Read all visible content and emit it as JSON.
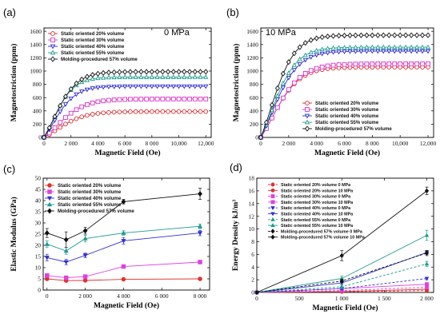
{
  "chart_data": [
    {
      "panel_label": "(a)",
      "annotation": "0 MPa",
      "type": "line",
      "xlabel": "Magnetic Field   (Oe)",
      "ylabel": "Magnetostriction  (ppm)",
      "xlim": [
        0,
        12400
      ],
      "ylim": [
        0,
        1650
      ],
      "xticks": [
        0,
        2000,
        4000,
        6000,
        8000,
        10000,
        12000
      ],
      "xtick_labels": [
        "0",
        "2 000",
        "4 000",
        "6 000",
        "8 000",
        "10,000",
        "12,000"
      ],
      "yticks": [
        0,
        200,
        400,
        600,
        800,
        1000,
        1200,
        1400,
        1600
      ],
      "ytick_labels": [
        "0",
        "200",
        "400",
        "600",
        "800",
        "1000",
        "1200",
        "1400",
        "1600"
      ],
      "legend_position": "top-left",
      "series": [
        {
          "name": "Static oriented 20% volume",
          "color": "#d62828",
          "marker": "circle",
          "sat": 390,
          "k": 2600
        },
        {
          "name": "Static oriented 30% volume",
          "color": "#d633c8",
          "marker": "square",
          "sat": 580,
          "k": 2600
        },
        {
          "name": "Static oriented 40% volume",
          "color": "#2a2ad0",
          "marker": "tri-down",
          "sat": 770,
          "k": 2000
        },
        {
          "name": "Static oriented 55% volume",
          "color": "#1f9c8e",
          "marker": "tri-up",
          "sat": 910,
          "k": 1900
        },
        {
          "name": "Molding-procedured 57% volume",
          "color": "#111111",
          "marker": "diamond",
          "sat": 990,
          "k": 2100
        }
      ]
    },
    {
      "panel_label": "(b)",
      "annotation": "10 MPa",
      "type": "line",
      "xlabel": "Magnetic Field   (Oe)",
      "ylabel": "Magnetostriction  (ppm)",
      "xlim": [
        0,
        12400
      ],
      "ylim": [
        0,
        1650
      ],
      "xticks": [
        0,
        2000,
        4000,
        6000,
        8000,
        10000,
        12000
      ],
      "xtick_labels": [
        "0",
        "2 000",
        "4 000",
        "6 000",
        "8 000",
        "10,000",
        "12,000"
      ],
      "yticks": [
        0,
        200,
        400,
        600,
        800,
        1000,
        1200,
        1400,
        1600
      ],
      "ytick_labels": [
        "0",
        "200",
        "400",
        "600",
        "800",
        "1000",
        "1200",
        "1400",
        "1600"
      ],
      "legend_position": "bottom-right",
      "series": [
        {
          "name": "Static oriented 20% volume",
          "color": "#d62828",
          "marker": "circle",
          "sat": 1060,
          "k": 2400
        },
        {
          "name": "Static oriented 30% volume",
          "color": "#d633c8",
          "marker": "square",
          "sat": 1110,
          "k": 2500
        },
        {
          "name": "Static oriented 40% volume",
          "color": "#2a2ad0",
          "marker": "tri-down",
          "sat": 1300,
          "k": 2300
        },
        {
          "name": "Static oriented 55% volume",
          "color": "#1f9c8e",
          "marker": "tri-up",
          "sat": 1360,
          "k": 2200
        },
        {
          "name": "Molding-procedured 57% volume",
          "color": "#111111",
          "marker": "diamond",
          "sat": 1540,
          "k": 2100
        }
      ]
    },
    {
      "panel_label": "(c)",
      "type": "line",
      "xlabel": "Magnetic Field   (Oe)",
      "ylabel": "Elastic Modulus   (GPa)",
      "x": [
        0,
        1000,
        2000,
        4000,
        8000
      ],
      "xlim": [
        -200,
        8500
      ],
      "ylim": [
        0,
        50
      ],
      "xticks": [
        0,
        2000,
        4000,
        6000,
        8000
      ],
      "xtick_labels": [
        "0",
        "2 000",
        "4 000",
        "6 000",
        "8 000"
      ],
      "yticks": [
        0,
        5,
        10,
        15,
        20,
        25,
        30,
        35,
        40,
        45,
        50
      ],
      "ytick_labels": [
        "0",
        "5",
        "10",
        "15",
        "20",
        "25",
        "30",
        "35",
        "40",
        "45",
        "50"
      ],
      "legend_position": "top-left",
      "series": [
        {
          "name": "Static oriented 20% volume",
          "color": "#e23030",
          "marker": "circle",
          "values": [
            5,
            4.2,
            4.3,
            4.8,
            5.0
          ],
          "err": [
            0.5,
            0.4,
            0.4,
            0.3,
            0.3
          ]
        },
        {
          "name": "Static oriented 30% volume",
          "color": "#e040e0",
          "marker": "square",
          "values": [
            6.5,
            5.5,
            6,
            10.5,
            12.5
          ],
          "err": [
            0.6,
            0.5,
            0.5,
            0.6,
            0.5
          ]
        },
        {
          "name": "Static oriented 40% volume",
          "color": "#3030d0",
          "marker": "tri-down",
          "values": [
            14.5,
            12.5,
            15.5,
            22,
            25.5
          ],
          "err": [
            1.5,
            1.2,
            1.0,
            1.5,
            1.2
          ]
        },
        {
          "name": "Static oriented 55% volume",
          "color": "#1f9c8e",
          "marker": "tri-up",
          "values": [
            20.5,
            17.5,
            23,
            25.5,
            28.5
          ],
          "err": [
            1.5,
            1.5,
            1.5,
            1.0,
            1.0
          ]
        },
        {
          "name": "Molding-procedured 57% volume",
          "color": "#111111",
          "marker": "diamond",
          "values": [
            25.5,
            22.5,
            26.5,
            39.5,
            43
          ],
          "err": [
            2.0,
            3.5,
            1.5,
            1.0,
            2.5
          ]
        }
      ]
    },
    {
      "panel_label": "(d)",
      "type": "line",
      "xlabel": "Magnetic Field   (Oe)",
      "ylabel": "Energy Density kJ/m³",
      "x": [
        0,
        1000,
        2000
      ],
      "xlim": [
        0,
        2080
      ],
      "ylim": [
        0,
        18
      ],
      "xticks": [
        0,
        500,
        1000,
        1500,
        2000
      ],
      "xtick_labels": [
        "0",
        "500",
        "1 000",
        "1 500",
        "2 000"
      ],
      "yticks": [
        0,
        2,
        4,
        6,
        8,
        10,
        12,
        14,
        16,
        18
      ],
      "ytick_labels": [
        "0",
        "2",
        "4",
        "6",
        "8",
        "10",
        "12",
        "14",
        "16",
        "18"
      ],
      "legend_position": "top-left",
      "series": [
        {
          "name": "Static oriented 20% volume 0 MPa",
          "color": "#e23030",
          "marker": "circle",
          "dash": "3,2",
          "values": [
            0,
            0.1,
            0.3
          ],
          "err": [
            0,
            0.05,
            0.1
          ]
        },
        {
          "name": "Static oriented 20% volume 10 MPa",
          "color": "#e23030",
          "marker": "circle",
          "dash": "",
          "values": [
            0,
            0.15,
            0.5
          ],
          "err": [
            0,
            0.05,
            0.1
          ]
        },
        {
          "name": "Static oriented 30% volume 0 MPa",
          "color": "#e040e0",
          "marker": "square",
          "dash": "3,2",
          "values": [
            0,
            0.3,
            0.8
          ],
          "err": [
            0,
            0.1,
            0.1
          ]
        },
        {
          "name": "Static oriented 30% volume 10 MPa",
          "color": "#e040e0",
          "marker": "square",
          "dash": "",
          "values": [
            0,
            0.6,
            1.3
          ],
          "err": [
            0,
            0.1,
            0.2
          ]
        },
        {
          "name": "Static oriented 40% volume 0 MPa",
          "color": "#3030d0",
          "marker": "tri-down",
          "dash": "3,2",
          "values": [
            0,
            0.6,
            2.2
          ],
          "err": [
            0,
            0.2,
            0.2
          ]
        },
        {
          "name": "Static oriented 40% volume 10 MPa",
          "color": "#3030d0",
          "marker": "tri-down",
          "dash": "",
          "values": [
            0,
            1.5,
            6.3
          ],
          "err": [
            0,
            0.3,
            0.3
          ]
        },
        {
          "name": "Static oriented 55% volume 0 MPa",
          "color": "#1f9c8e",
          "marker": "tri-up",
          "dash": "3,2",
          "values": [
            0,
            0.9,
            4.5
          ],
          "err": [
            0,
            0.3,
            0.4
          ]
        },
        {
          "name": "Static oriented 55% volume 10 MPa",
          "color": "#1f9c8e",
          "marker": "tri-up",
          "dash": "",
          "values": [
            0,
            2.2,
            9.0
          ],
          "err": [
            0,
            0.4,
            0.8
          ]
        },
        {
          "name": "Molding-procedured 57% volume 0 MPa",
          "color": "#111111",
          "marker": "diamond",
          "dash": "3,2",
          "values": [
            0,
            1.8,
            6.2
          ],
          "err": [
            0,
            0.3,
            0.4
          ]
        },
        {
          "name": "Molding-procedured 57% volume 10 MPa",
          "color": "#111111",
          "marker": "diamond",
          "dash": "",
          "values": [
            0,
            5.8,
            16.0
          ],
          "err": [
            0,
            0.8,
            0.6
          ]
        }
      ]
    }
  ]
}
